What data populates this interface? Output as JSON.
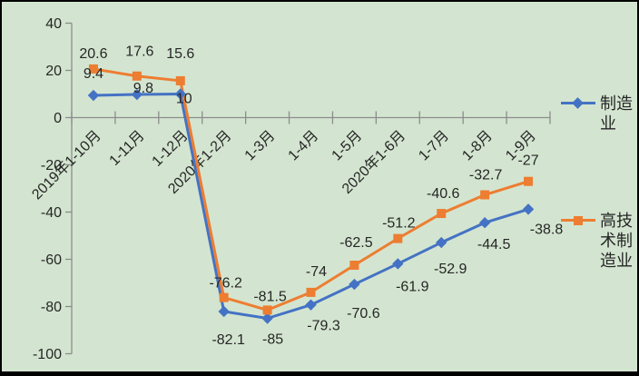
{
  "chart_data": {
    "type": "line",
    "title": "",
    "xlabel": "",
    "ylabel": "",
    "categories": [
      "2019年1-10月",
      "1-11月",
      "1-12月",
      "2020年1-2月",
      "1-3月",
      "1-4月",
      "1-5月",
      "2020年1-6月",
      "1-7月",
      "1-8月",
      "1-9月"
    ],
    "series": [
      {
        "name": "制造业",
        "color": "#4472c4",
        "marker": "diamond",
        "values": [
          9.4,
          9.8,
          10,
          -82.1,
          -85,
          -79.3,
          -70.6,
          -61.9,
          -52.9,
          -44.5,
          -38.8
        ],
        "labels": [
          "9.4",
          "9.8",
          "10",
          "-82.1",
          "-85",
          "-79.3",
          "-70.6",
          "-61.9",
          "-52.9",
          "-44.5",
          "-38.8"
        ],
        "label_dx": [
          0,
          7,
          4,
          5,
          6,
          14,
          10,
          16,
          10,
          10,
          20
        ],
        "label_dy": [
          -19,
          -2,
          10,
          36,
          28,
          28,
          37,
          30,
          34,
          29,
          27
        ]
      },
      {
        "name": "高技术制造业",
        "color": "#ed7d31",
        "marker": "square",
        "values": [
          20.6,
          17.6,
          15.6,
          -76.2,
          -81.5,
          -74,
          -62.5,
          -51.2,
          -40.6,
          -32.7,
          -27
        ],
        "labels": [
          "20.6",
          "17.6",
          "15.6",
          "-76.2",
          "-81.5",
          "-74",
          "-62.5",
          "-51.2",
          "-40.6",
          "-32.7",
          "-27"
        ],
        "label_dx": [
          0,
          3,
          0,
          2,
          3,
          6,
          2,
          1,
          2,
          1,
          0
        ],
        "label_dy": [
          -12,
          -22,
          -25,
          -11,
          -10,
          -18,
          -20,
          -12,
          -17,
          -17,
          -18
        ]
      }
    ],
    "ylim": [
      -100,
      40
    ],
    "ytick_step": 20,
    "ytick_labels": [
      "40",
      "20",
      "0",
      "-20",
      "-40",
      "-60",
      "-80",
      "-100"
    ],
    "grid": false,
    "legend_position": "right",
    "legend": [
      "制造业",
      "高技术制造业"
    ]
  },
  "style": {
    "background": "#d3e5d0",
    "axis_color": "#8c8c8c",
    "text_color": "#262626",
    "frame_color": "#000000"
  }
}
